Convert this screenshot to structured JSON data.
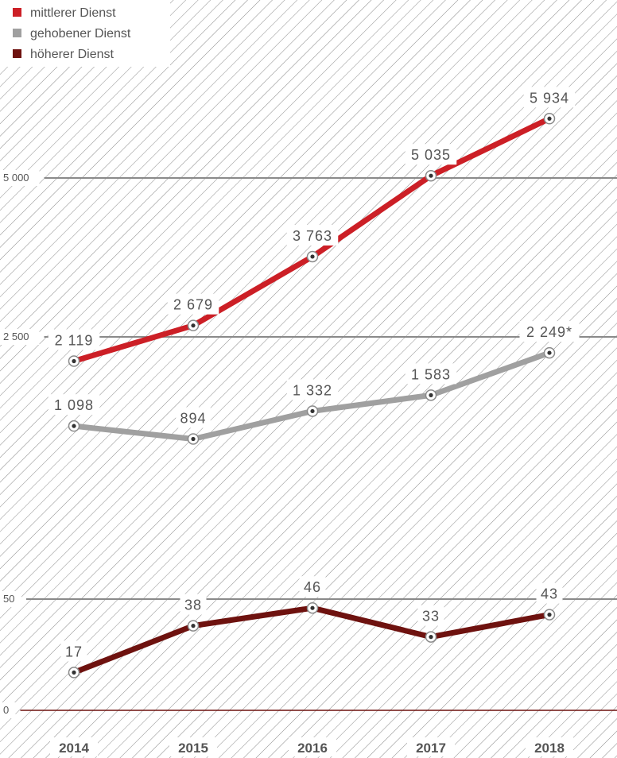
{
  "chart_data": {
    "type": "line",
    "categories": [
      "2014",
      "2015",
      "2016",
      "2017",
      "2018"
    ],
    "series": [
      {
        "name": "mittlerer Dienst",
        "color": "#cc1f26",
        "values": [
          2119,
          2679,
          3763,
          5035,
          5934
        ],
        "labels": [
          "2 119",
          "2 679",
          "3 763",
          "5 035",
          "5 934"
        ]
      },
      {
        "name": "gehobener Dienst",
        "color": "#a0a0a0",
        "values": [
          1098,
          894,
          1332,
          1583,
          2249
        ],
        "labels": [
          "1 098",
          "894",
          "1 332",
          "1 583",
          "2 249*"
        ]
      },
      {
        "name": "höherer Dienst",
        "color": "#6e120f",
        "values": [
          17,
          38,
          46,
          33,
          43
        ],
        "labels": [
          "17",
          "38",
          "46",
          "33",
          "43"
        ]
      }
    ],
    "y_ticks": [
      {
        "value": 0,
        "label": "0"
      },
      {
        "value": 50,
        "label": "50"
      },
      {
        "value": 2500,
        "label": "2 500"
      },
      {
        "value": 5000,
        "label": "5 000"
      }
    ],
    "axis_break": true,
    "grid": true,
    "legend_position": "top-left",
    "background": "diagonal-hatch"
  }
}
